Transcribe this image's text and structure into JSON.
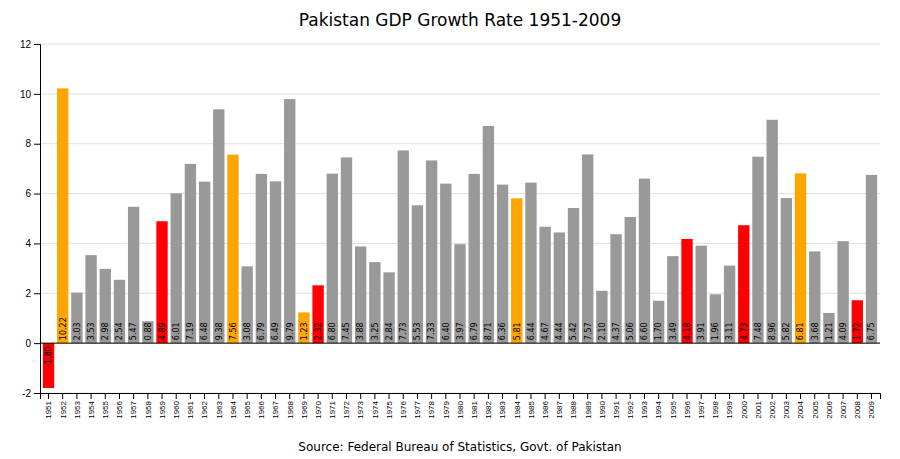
{
  "chart_data": {
    "type": "bar",
    "title": "Pakistan GDP Growth Rate 1951-2009",
    "annotations": [
      "Source: Federal Bureau of Statistics, Govt. of Pakistan"
    ],
    "categories": [
      "1951",
      "1952",
      "1953",
      "1954",
      "1955",
      "1956",
      "1957",
      "1958",
      "1959",
      "1960",
      "1961",
      "1962",
      "1963",
      "1964",
      "1965",
      "1966",
      "1967",
      "1968",
      "1969",
      "1970",
      "1971",
      "1972",
      "1973",
      "1974",
      "1975",
      "1976",
      "1977",
      "1978",
      "1979",
      "1980",
      "1981",
      "1982",
      "1983",
      "1984",
      "1985",
      "1986",
      "1987",
      "1988",
      "1989",
      "1990",
      "1991",
      "1992",
      "1993",
      "1994",
      "1995",
      "1996",
      "1997",
      "1998",
      "1999",
      "2000",
      "2001",
      "2002",
      "2003",
      "2004",
      "2005",
      "2006",
      "2007",
      "2008",
      "2009"
    ],
    "values": [
      -1.8,
      10.22,
      2.03,
      3.53,
      2.98,
      2.54,
      5.47,
      0.88,
      4.89,
      6.01,
      7.19,
      6.48,
      9.38,
      7.56,
      3.08,
      6.79,
      6.49,
      9.79,
      1.23,
      2.32,
      6.8,
      7.45,
      3.88,
      3.25,
      2.84,
      7.73,
      5.53,
      7.33,
      6.4,
      3.97,
      6.79,
      8.71,
      6.36,
      5.81,
      6.44,
      4.67,
      4.44,
      5.42,
      7.57,
      2.1,
      4.37,
      5.06,
      6.6,
      1.7,
      3.49,
      4.18,
      3.91,
      1.96,
      3.11,
      4.73,
      7.48,
      8.96,
      5.82,
      6.81,
      3.68,
      1.21,
      4.09,
      1.72,
      6.75
    ],
    "value_labels": [
      "-1.80",
      "10.22",
      "2.03",
      "3.53",
      "2.98",
      "2.54",
      "5.47",
      "0.88",
      "4.89",
      "6.01",
      "7.19",
      "6.48",
      "9.38",
      "7.56",
      "3.08",
      "6.79",
      "6.49",
      "9.79",
      "1.23",
      "2.32",
      "6.80",
      "7.45",
      "3.88",
      "3.25",
      "2.84",
      "7.73",
      "5.53",
      "7.33",
      "6.40",
      "3.97",
      "6.79",
      "8.71",
      "6.36",
      "5.81",
      "6.44",
      "4.67",
      "4.44",
      "5.42",
      "7.57",
      "2.10",
      "4.37",
      "5.06",
      "6.60",
      "1.70",
      "3.49",
      "4.18",
      "3.91",
      "1.96",
      "3.11",
      "4.73",
      "7.48",
      "8.96",
      "5.82",
      "6.81",
      "3.68",
      "1.21",
      "4.09",
      "1.72",
      "6.75"
    ],
    "colors": [
      "#FF0000",
      "#FFA500",
      "#999999",
      "#999999",
      "#999999",
      "#999999",
      "#999999",
      "#999999",
      "#FF0000",
      "#999999",
      "#999999",
      "#999999",
      "#999999",
      "#FFA500",
      "#999999",
      "#999999",
      "#999999",
      "#999999",
      "#FFA500",
      "#FF0000",
      "#999999",
      "#999999",
      "#999999",
      "#999999",
      "#999999",
      "#999999",
      "#999999",
      "#999999",
      "#999999",
      "#999999",
      "#999999",
      "#999999",
      "#999999",
      "#FFA500",
      "#999999",
      "#999999",
      "#999999",
      "#999999",
      "#999999",
      "#999999",
      "#999999",
      "#999999",
      "#999999",
      "#999999",
      "#999999",
      "#FF0000",
      "#999999",
      "#999999",
      "#999999",
      "#FF0000",
      "#999999",
      "#999999",
      "#999999",
      "#FFA500",
      "#999999",
      "#999999",
      "#999999",
      "#FF0000",
      "#999999"
    ],
    "ylim": [
      -2,
      12
    ],
    "yticks": [
      -2,
      0,
      2,
      4,
      6,
      8,
      10,
      12
    ],
    "grid": true,
    "data_labels": true
  }
}
